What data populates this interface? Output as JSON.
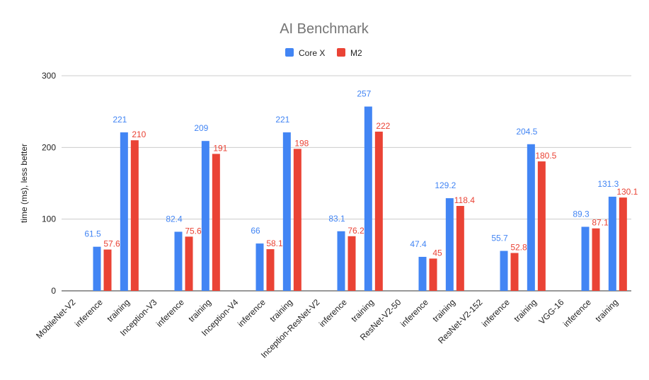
{
  "chart_data": {
    "type": "bar",
    "title": "AI Benchmark",
    "xlabel": "",
    "ylabel": "time (ms), less better",
    "ylim": [
      0,
      300
    ],
    "yticks": [
      0,
      100,
      200,
      300
    ],
    "grid": true,
    "legend_position": "top",
    "categories": [
      "MobileNet-V2",
      "inference",
      "training",
      "Inception-V3",
      "inference",
      "training",
      "Inception-V4",
      "inference",
      "training",
      "Inception-ResNet-V2",
      "inference",
      "training",
      "ResNet-V2-50",
      "inference",
      "training",
      "ResNet-V2-152",
      "inference",
      "training",
      "VGG-16",
      "inference",
      "training"
    ],
    "series": [
      {
        "name": "Core X",
        "color": "#4285f4",
        "values": [
          null,
          61.5,
          221,
          null,
          82.4,
          209,
          null,
          66,
          221,
          null,
          83.1,
          257,
          null,
          47.4,
          129.2,
          null,
          55.7,
          204.5,
          null,
          89.3,
          131.3
        ],
        "labels": [
          "",
          "61.5",
          "221",
          "",
          "82.4",
          "209",
          "",
          "66",
          "221",
          "",
          "83.1",
          "257",
          "",
          "47.4",
          "129.2",
          "",
          "55.7",
          "204.5",
          "",
          "89.3",
          "131.3"
        ]
      },
      {
        "name": "M2",
        "color": "#ea4335",
        "values": [
          null,
          57.6,
          210,
          null,
          75.6,
          191,
          null,
          58.1,
          198,
          null,
          76.2,
          222,
          null,
          45,
          118.4,
          null,
          52.8,
          180.5,
          null,
          87.1,
          130.1
        ],
        "labels": [
          "",
          "57.6",
          "210",
          "",
          "75.6",
          "191",
          "",
          "58.1",
          "198",
          "",
          "76.2",
          "222",
          "",
          "45",
          "118.4",
          "",
          "52.8",
          "180.5",
          "",
          "87.1",
          "130.1"
        ]
      }
    ]
  }
}
